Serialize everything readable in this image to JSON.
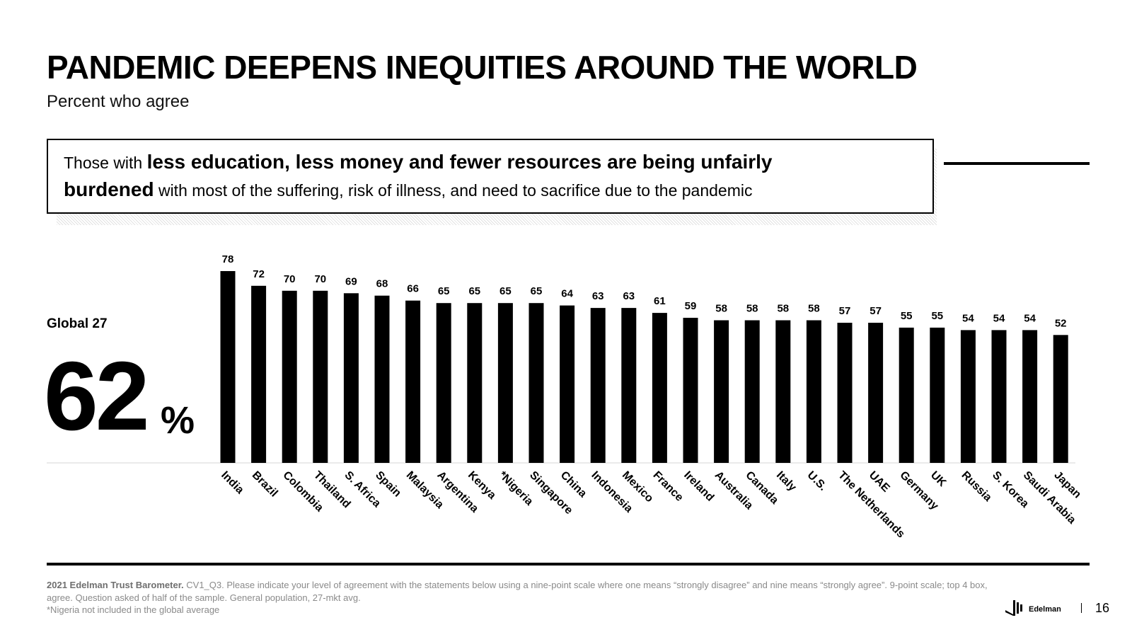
{
  "header": {
    "title": "PANDEMIC DEEPENS INEQUITIES AROUND THE WORLD",
    "subtitle": "Percent who agree"
  },
  "callout": {
    "part1": "Those with ",
    "bold1": "less education, less money and fewer resources are being unfairly",
    "bold2": "burdened",
    "part2": " with most of the suffering, risk of illness, and need to sacrifice due to the pandemic"
  },
  "global": {
    "label": "Global 27",
    "value": "62",
    "unit": "%"
  },
  "chart_data": {
    "type": "bar",
    "categories": [
      "India",
      "Brazil",
      "Colombia",
      "Thailand",
      "S. Africa",
      "Spain",
      "Malaysia",
      "Argentina",
      "Kenya",
      "*Nigeria",
      "Singapore",
      "China",
      "Indonesia",
      "Mexico",
      "France",
      "Ireland",
      "Australia",
      "Canada",
      "Italy",
      "U.S.",
      "The Netherlands",
      "UAE",
      "Germany",
      "UK",
      "Russia",
      "S. Korea",
      "Saudi Arabia",
      "Japan"
    ],
    "values": [
      78,
      72,
      70,
      70,
      69,
      68,
      66,
      65,
      65,
      65,
      65,
      64,
      63,
      63,
      61,
      59,
      58,
      58,
      58,
      58,
      57,
      57,
      55,
      55,
      54,
      54,
      54,
      52
    ],
    "ylim": [
      0,
      78
    ],
    "grid": false,
    "bar_color": "#000000"
  },
  "footer": {
    "note_bold": "2021 Edelman Trust Barometer.",
    "note_text": " CV1_Q3. Please indicate your level of agreement with the statements below using a nine-point scale where one means “strongly disagree” and nine means “strongly agree”. 9-point scale; top 4 box, agree. Question asked of half of the sample. General population, 27-mkt avg.",
    "note_line3": "*Nigeria not included in the global average",
    "brand": "Edelman",
    "page_number": "16"
  }
}
